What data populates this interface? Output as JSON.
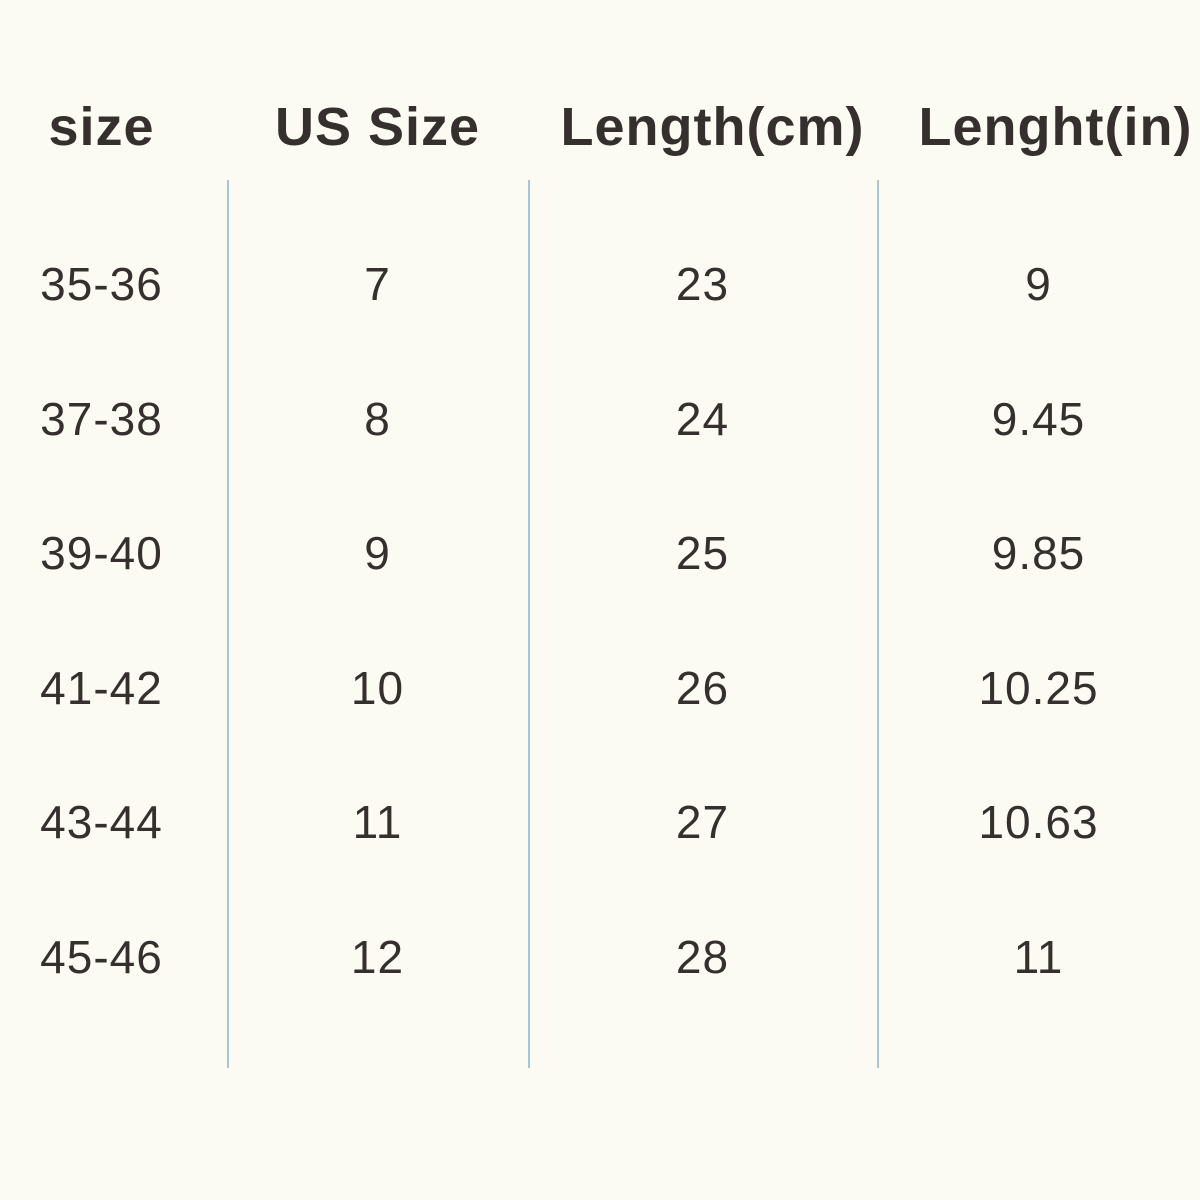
{
  "table": {
    "title": "shoe-size-chart",
    "headers": {
      "size": "size",
      "us_size": "US Size",
      "length_cm": "Length(cm)",
      "length_in": "Lenght(in)"
    },
    "rows": [
      [
        "35-36",
        "7",
        "23",
        "9"
      ],
      [
        "37-38",
        "8",
        "24",
        "9.45"
      ],
      [
        "39-40",
        "9",
        "25",
        "9.85"
      ],
      [
        "41-42",
        "10",
        "26",
        "10.25"
      ],
      [
        "43-44",
        "11",
        "27",
        "10.63"
      ],
      [
        "45-46",
        "12",
        "28",
        "11"
      ]
    ]
  },
  "colors": {
    "background": "#fbfaf3",
    "text": "#35302e",
    "divider": "#a7c6d5"
  }
}
